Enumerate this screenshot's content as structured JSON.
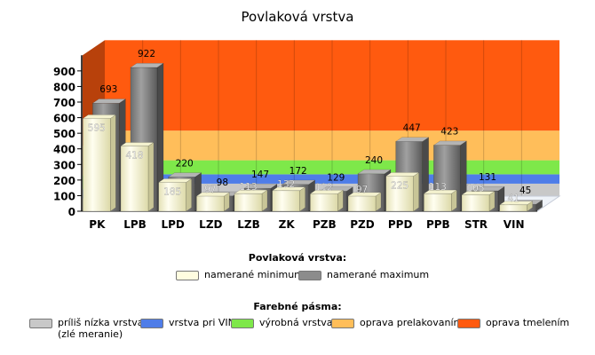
{
  "chart_data": {
    "type": "bar",
    "title": "Povlaková vrstva",
    "categories": [
      "PK",
      "LPB",
      "LPD",
      "LZD",
      "LZB",
      "ZK",
      "PZB",
      "PZD",
      "PPD",
      "PPB",
      "STR",
      "VIN"
    ],
    "series": [
      {
        "name": "namerané minimum",
        "values": [
          595,
          418,
          185,
          97,
          113,
          132,
          112,
          97,
          225,
          113,
          105,
          41
        ],
        "color": "#fffde0"
      },
      {
        "name": "namerané maximum",
        "values": [
          693,
          922,
          220,
          98,
          147,
          172,
          129,
          240,
          447,
          423,
          131,
          45
        ],
        "color": "#8c8c8c"
      }
    ],
    "yticks": [
      0,
      100,
      200,
      300,
      400,
      500,
      600,
      700,
      800,
      900
    ],
    "ylim": [
      0,
      1000
    ],
    "bands": [
      {
        "name": "príliš nízka vrstva (zlé meranie)",
        "from": 0,
        "to": 80,
        "color": "#c8c8c8"
      },
      {
        "name": "vrstva pri VIN",
        "from": 80,
        "to": 140,
        "color": "#4f7de8"
      },
      {
        "name": "výrobná vrstva",
        "from": 140,
        "to": 230,
        "color": "#7ee84a"
      },
      {
        "name": "oprava prelakovaním",
        "from": 230,
        "to": 420,
        "color": "#ffbe5a"
      },
      {
        "name": "oprava tmelením",
        "from": 420,
        "to": 1000,
        "color": "#ff5a0f"
      }
    ]
  },
  "legend": {
    "series_title": "Povlaková vrstva:",
    "bands_title": "Farebné pásma:",
    "bands_labels": [
      "príliš nízka vrstva\n(zlé meranie)",
      "vrstva pri VIN",
      "výrobná vrstva",
      "oprava prelakovaním",
      "oprava tmelením"
    ]
  }
}
